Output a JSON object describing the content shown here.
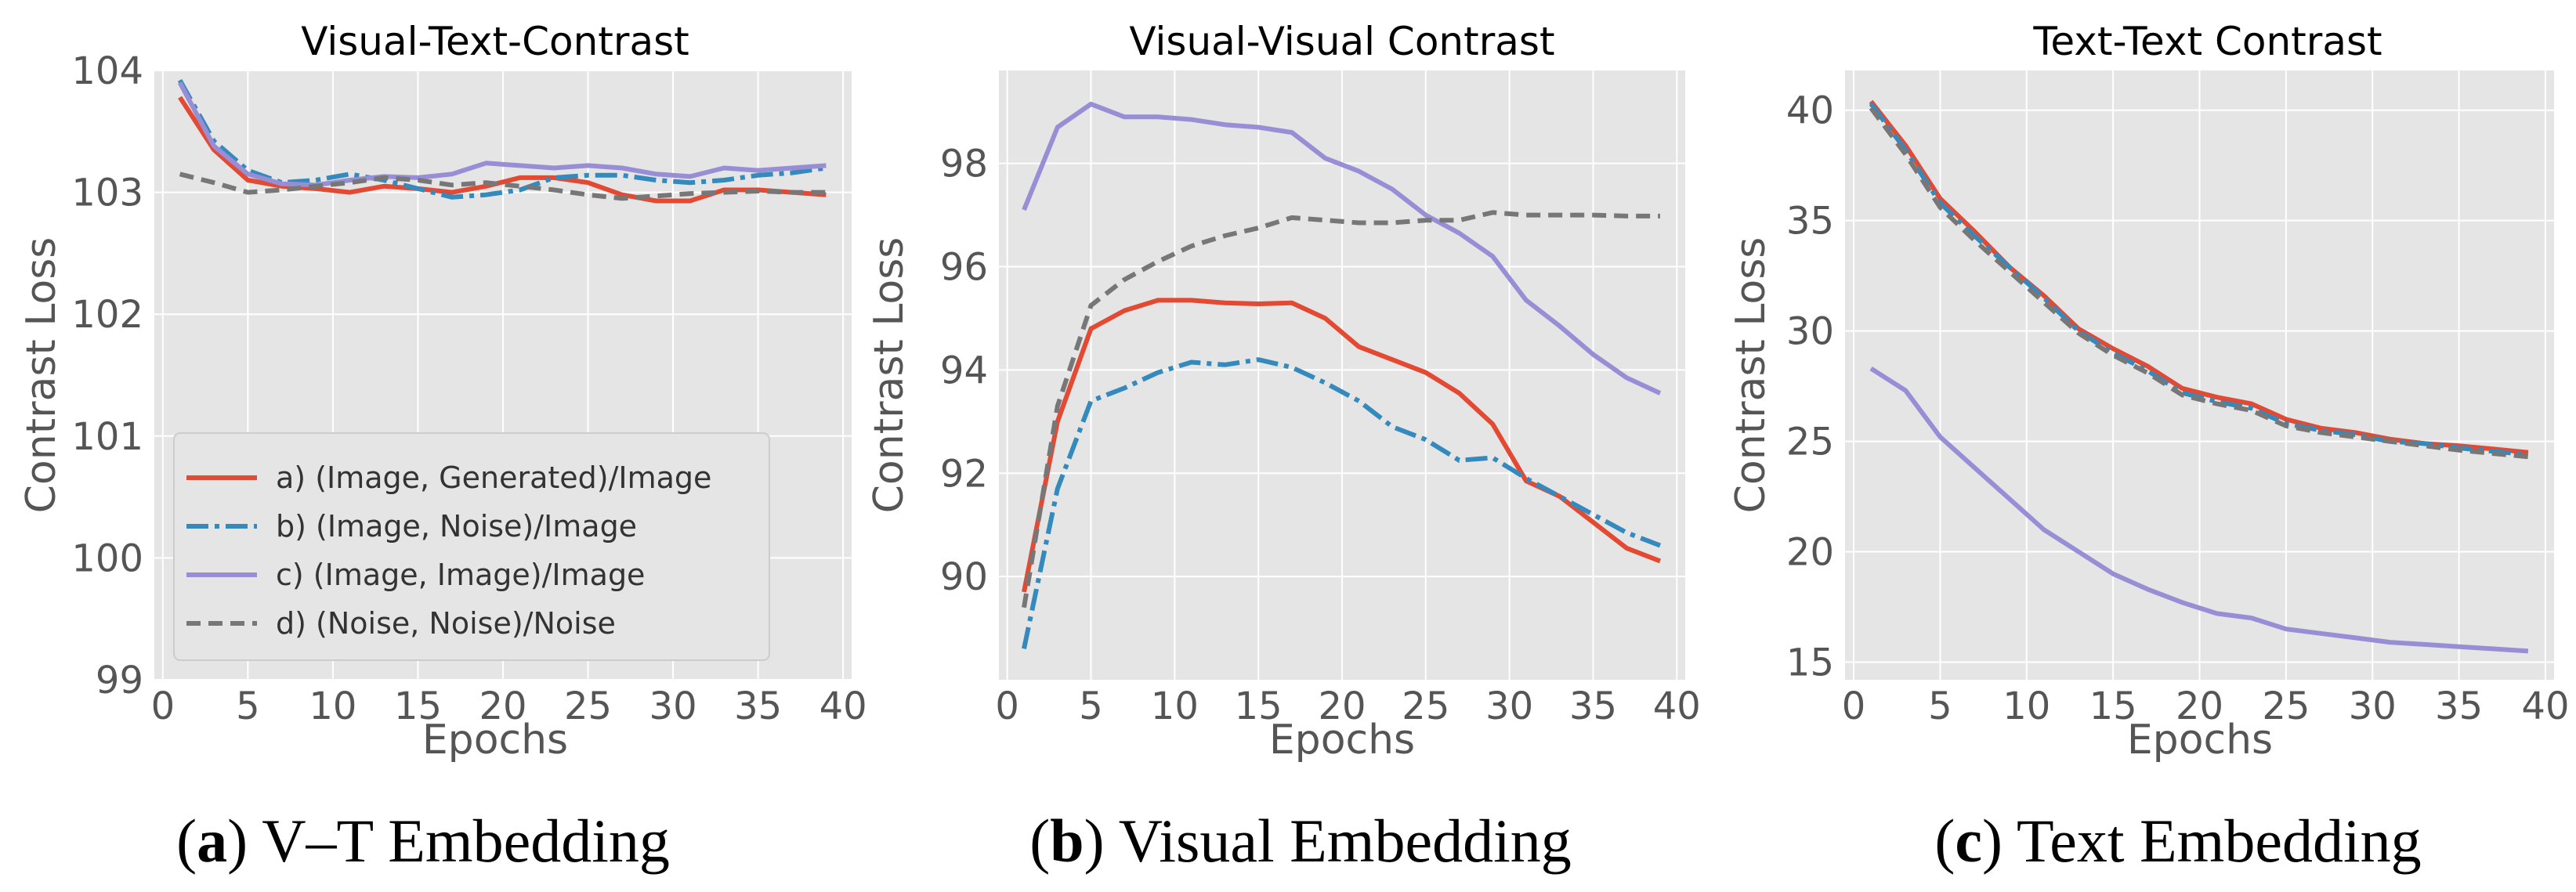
{
  "chart_data": [
    {
      "type": "line",
      "title": "Visual-Text-Contrast",
      "xlabel": "Epochs",
      "ylabel": "Contrast Loss",
      "caption_letter": "a",
      "caption_text": "V–T Embedding",
      "xlim": [
        -0.5,
        40.5
      ],
      "ylim": [
        99,
        104
      ],
      "xticks": [
        "0",
        "5",
        "10",
        "15",
        "20",
        "25",
        "30",
        "35",
        "40"
      ],
      "yticks": [
        "99",
        "100",
        "101",
        "102",
        "103",
        "104"
      ],
      "grid": true,
      "legend": "lower-left",
      "x": [
        1,
        3,
        5,
        7,
        9,
        11,
        13,
        15,
        17,
        19,
        21,
        23,
        25,
        27,
        29,
        31,
        33,
        35,
        37,
        39
      ],
      "series": [
        {
          "name": "a) (Image, Generated)/Image",
          "values": [
            103.78,
            103.35,
            103.1,
            103.05,
            103.03,
            103.0,
            103.05,
            103.03,
            103.0,
            103.05,
            103.12,
            103.12,
            103.08,
            102.98,
            102.93,
            102.93,
            103.02,
            103.02,
            103.0,
            102.98
          ]
        },
        {
          "name": "b) (Image, Noise)/Image",
          "values": [
            103.92,
            103.42,
            103.18,
            103.08,
            103.1,
            103.15,
            103.1,
            103.03,
            102.96,
            102.98,
            103.02,
            103.12,
            103.14,
            103.14,
            103.1,
            103.08,
            103.1,
            103.14,
            103.16,
            103.2
          ]
        },
        {
          "name": "c) (Image, Image)/Image",
          "values": [
            103.9,
            103.38,
            103.15,
            103.07,
            103.06,
            103.1,
            103.13,
            103.12,
            103.15,
            103.24,
            103.22,
            103.2,
            103.22,
            103.2,
            103.15,
            103.13,
            103.2,
            103.18,
            103.2,
            103.22
          ]
        },
        {
          "name": "d) (Noise, Noise)/Noise",
          "values": [
            103.15,
            103.08,
            103.0,
            103.02,
            103.05,
            103.08,
            103.12,
            103.1,
            103.06,
            103.08,
            103.05,
            103.02,
            102.98,
            102.95,
            102.97,
            102.99,
            103.0,
            103.01,
            103.0,
            103.0
          ]
        }
      ]
    },
    {
      "type": "line",
      "title": "Visual-Visual Contrast",
      "xlabel": "Epochs",
      "ylabel": "Contrast Loss",
      "caption_letter": "b",
      "caption_text": "Visual Embedding",
      "xlim": [
        -0.5,
        40.5
      ],
      "ylim": [
        88.0,
        99.8
      ],
      "xticks": [
        "0",
        "5",
        "10",
        "15",
        "20",
        "25",
        "30",
        "35",
        "40"
      ],
      "yticks": [
        "90",
        "92",
        "94",
        "96",
        "98"
      ],
      "grid": true,
      "x": [
        1,
        3,
        5,
        7,
        9,
        11,
        13,
        15,
        17,
        19,
        21,
        23,
        25,
        27,
        29,
        31,
        33,
        35,
        37,
        39
      ],
      "series": [
        {
          "name": "a) (Image, Generated)/Image",
          "values": [
            89.7,
            93.0,
            94.8,
            95.15,
            95.35,
            95.35,
            95.3,
            95.28,
            95.3,
            95.0,
            94.45,
            94.2,
            93.95,
            93.55,
            92.95,
            91.85,
            91.55,
            91.05,
            90.55,
            90.3
          ]
        },
        {
          "name": "b) (Image, Noise)/Image",
          "values": [
            88.6,
            91.7,
            93.4,
            93.65,
            93.95,
            94.15,
            94.1,
            94.2,
            94.05,
            93.75,
            93.4,
            92.9,
            92.65,
            92.25,
            92.3,
            91.9,
            91.55,
            91.2,
            90.85,
            90.6
          ]
        },
        {
          "name": "c) (Image, Image)/Image",
          "values": [
            97.1,
            98.7,
            99.15,
            98.9,
            98.9,
            98.85,
            98.75,
            98.7,
            98.6,
            98.1,
            97.85,
            97.5,
            97.0,
            96.65,
            96.2,
            95.35,
            94.85,
            94.3,
            93.85,
            93.55
          ]
        },
        {
          "name": "d) (Noise, Noise)/Noise",
          "values": [
            89.4,
            93.3,
            95.25,
            95.75,
            96.1,
            96.4,
            96.6,
            96.75,
            96.95,
            96.9,
            96.85,
            96.85,
            96.9,
            96.9,
            97.05,
            97.0,
            97.0,
            97.0,
            96.98,
            96.98
          ]
        }
      ]
    },
    {
      "type": "line",
      "title": "Text-Text Contrast",
      "xlabel": "Epochs",
      "ylabel": "Contrast Loss",
      "caption_letter": "c",
      "caption_text": "Text Embedding",
      "xlim": [
        -0.5,
        40.5
      ],
      "ylim": [
        14.2,
        41.8
      ],
      "xticks": [
        "0",
        "5",
        "10",
        "15",
        "20",
        "25",
        "30",
        "35",
        "40"
      ],
      "yticks": [
        "15",
        "20",
        "25",
        "30",
        "35",
        "40"
      ],
      "grid": true,
      "x": [
        1,
        3,
        5,
        7,
        9,
        11,
        13,
        15,
        17,
        19,
        21,
        23,
        25,
        27,
        29,
        31,
        33,
        35,
        37,
        39
      ],
      "series": [
        {
          "name": "a) (Image, Generated)/Image",
          "values": [
            40.4,
            38.4,
            36.0,
            34.5,
            32.9,
            31.6,
            30.1,
            29.2,
            28.4,
            27.4,
            27.0,
            26.7,
            26.0,
            25.6,
            25.4,
            25.1,
            24.9,
            24.8,
            24.65,
            24.5
          ]
        },
        {
          "name": "b) (Image, Noise)/Image",
          "values": [
            40.3,
            38.2,
            35.8,
            34.3,
            32.9,
            31.5,
            30.0,
            29.0,
            28.2,
            27.2,
            26.8,
            26.5,
            25.8,
            25.5,
            25.3,
            25.0,
            24.9,
            24.7,
            24.55,
            24.4
          ]
        },
        {
          "name": "c) (Image, Image)/Image",
          "values": [
            28.3,
            27.3,
            25.2,
            23.8,
            22.4,
            21.0,
            20.0,
            19.0,
            18.3,
            17.7,
            17.2,
            17.0,
            16.5,
            16.3,
            16.1,
            15.9,
            15.8,
            15.7,
            15.6,
            15.5
          ]
        },
        {
          "name": "d) (Noise, Noise)/Noise",
          "values": [
            40.1,
            38.0,
            35.6,
            34.1,
            32.7,
            31.3,
            29.9,
            28.9,
            28.1,
            27.1,
            26.7,
            26.4,
            25.7,
            25.4,
            25.2,
            25.0,
            24.8,
            24.6,
            24.45,
            24.3
          ]
        }
      ]
    }
  ],
  "colors": {
    "series": [
      "#e24a33",
      "#348abd",
      "#988ed5",
      "#777777"
    ],
    "plot_background": "#e5e5e5",
    "grid": "#ffffff",
    "tick_text": "#555555"
  }
}
